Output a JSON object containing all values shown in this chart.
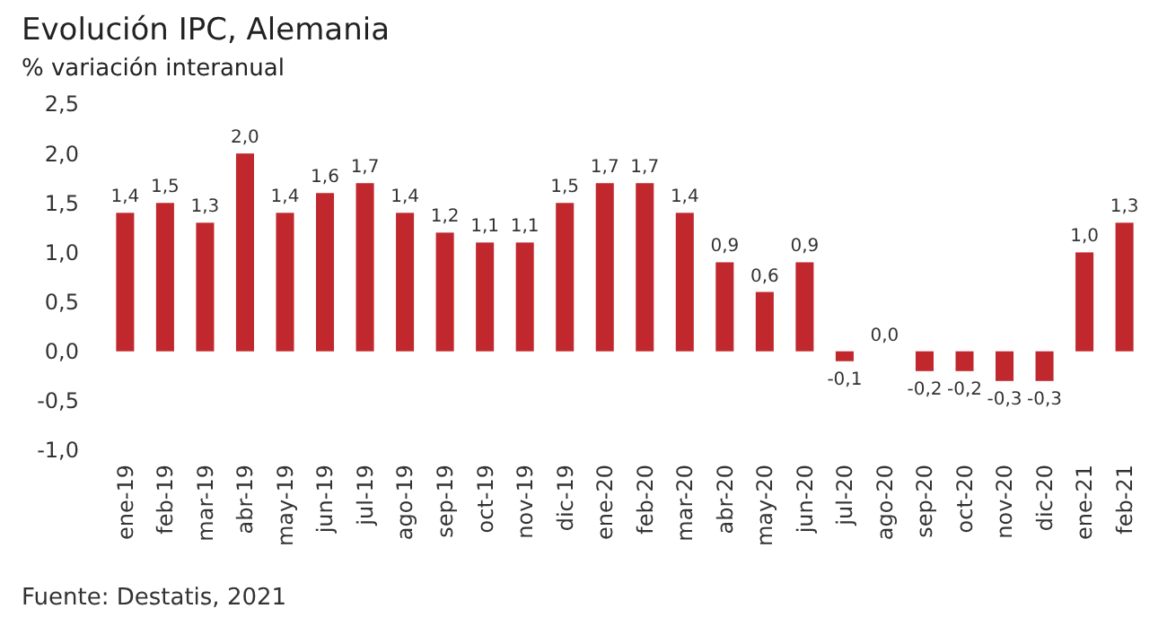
{
  "chart_data": {
    "type": "bar",
    "title": "Evolución IPC, Alemania",
    "subtitle": "% variación interanual",
    "categories": [
      "ene-19",
      "feb-19",
      "mar-19",
      "abr-19",
      "may-19",
      "jun-19",
      "jul-19",
      "ago-19",
      "sep-19",
      "oct-19",
      "nov-19",
      "dic-19",
      "ene-20",
      "feb-20",
      "mar-20",
      "abr-20",
      "may-20",
      "jun-20",
      "jul-20",
      "ago-20",
      "sep-20",
      "oct-20",
      "nov-20",
      "dic-20",
      "ene-21",
      "feb-21"
    ],
    "values": [
      1.4,
      1.5,
      1.3,
      2.0,
      1.4,
      1.6,
      1.7,
      1.4,
      1.2,
      1.1,
      1.1,
      1.5,
      1.7,
      1.7,
      1.4,
      0.9,
      0.6,
      0.9,
      -0.1,
      0.0,
      -0.2,
      -0.2,
      -0.3,
      -0.3,
      1.0,
      1.3
    ],
    "value_labels": [
      "1,4",
      "1,5",
      "1,3",
      "2,0",
      "1,4",
      "1,6",
      "1,7",
      "1,4",
      "1,2",
      "1,1",
      "1,1",
      "1,5",
      "1,7",
      "1,7",
      "1,4",
      "0,9",
      "0,6",
      "0,9",
      "-0,1",
      "0,0",
      "-0,2",
      "-0,2",
      "-0,3",
      "-0,3",
      "1,0",
      "1,3"
    ],
    "color": "#c0282d",
    "ylim": [
      -1,
      2.5
    ],
    "yticks": [
      {
        "value": -1,
        "label": "-1,0"
      },
      {
        "value": -0.5,
        "label": "-0,5"
      },
      {
        "value": 0,
        "label": "0,0"
      },
      {
        "value": 0.5,
        "label": "0,5"
      },
      {
        "value": 1,
        "label": "1,0"
      },
      {
        "value": 1.5,
        "label": "1,5"
      },
      {
        "value": 2,
        "label": "2,0"
      },
      {
        "value": 2.5,
        "label": "2,5"
      }
    ],
    "annotations": [
      "Fuente: Destatis, 2021"
    ]
  }
}
